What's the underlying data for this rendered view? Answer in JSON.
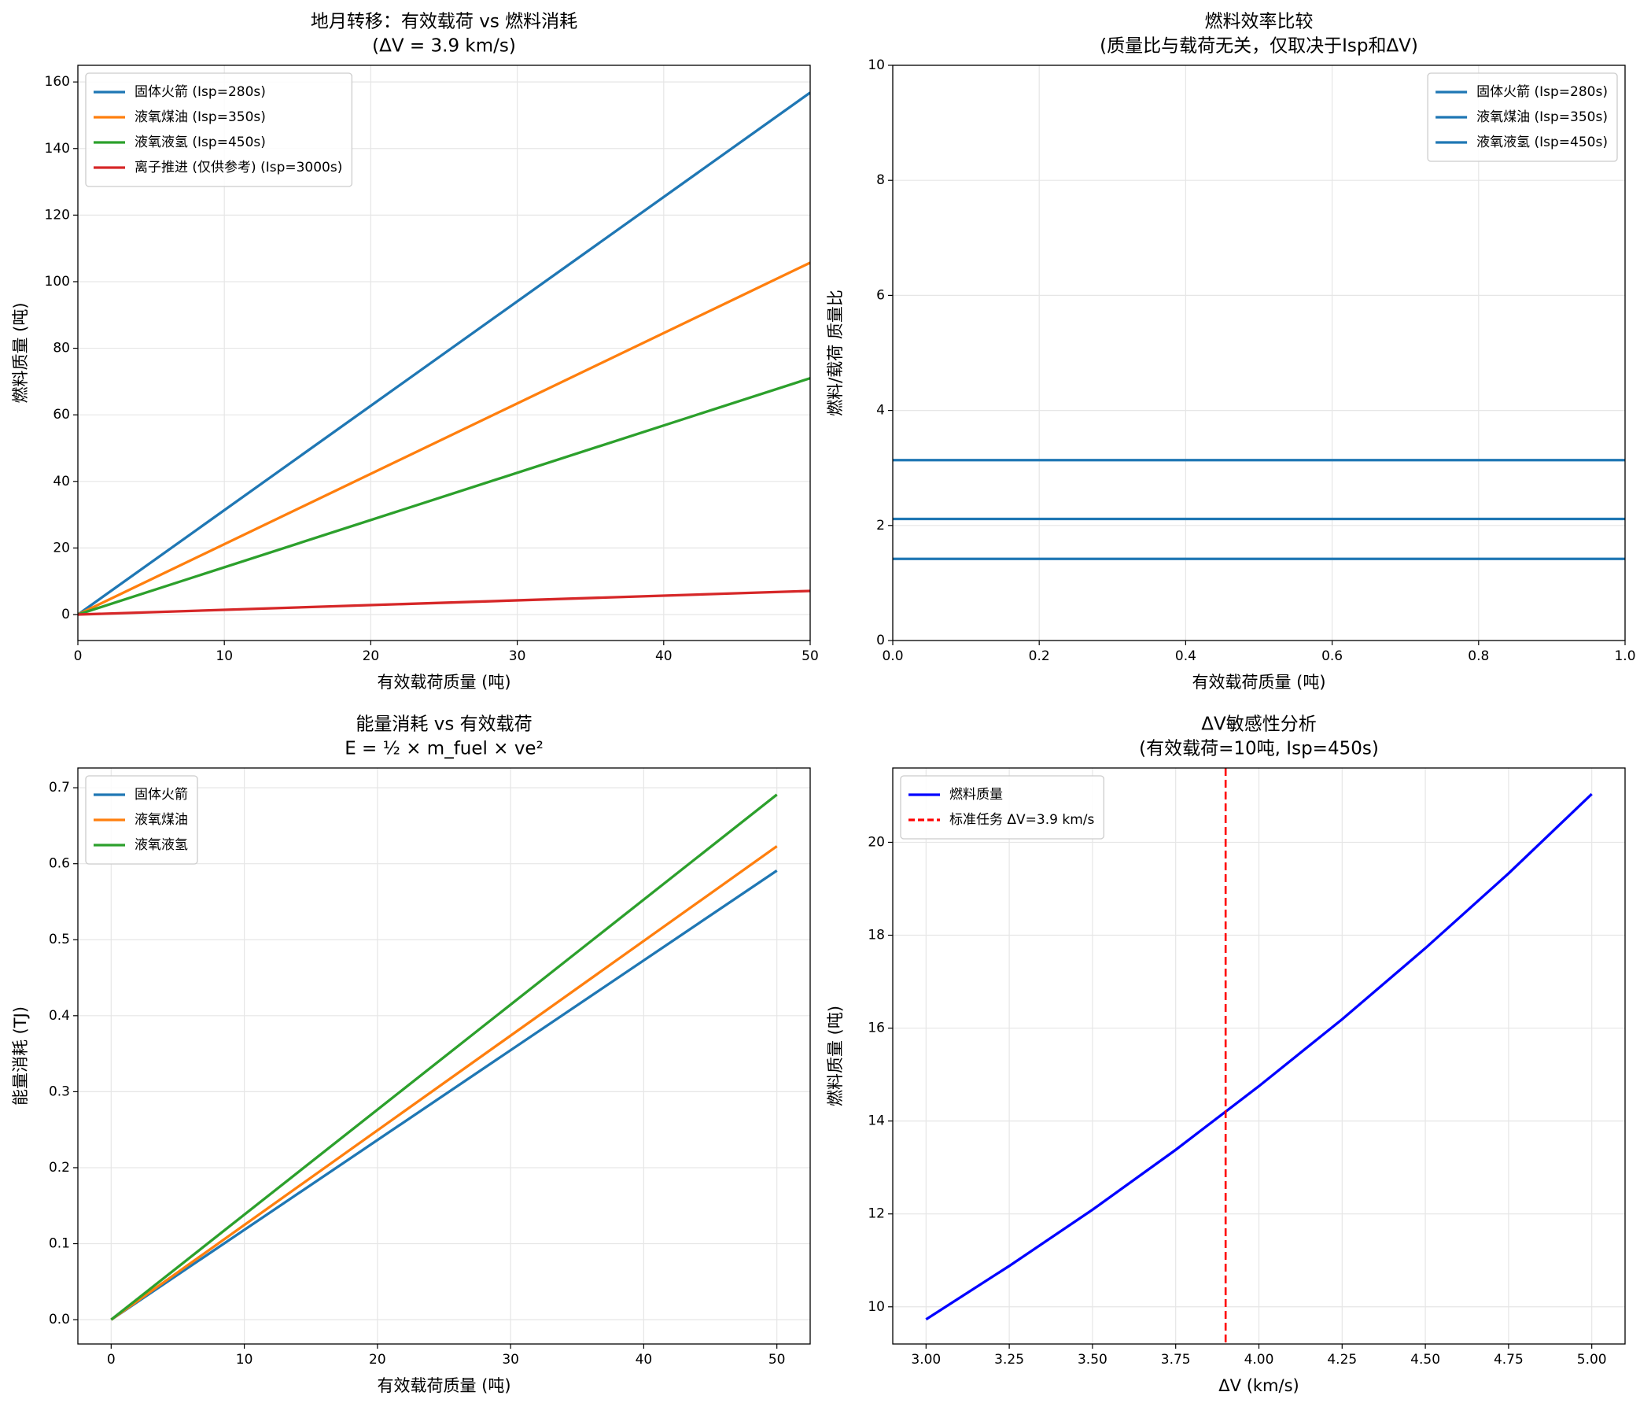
{
  "chart_data": [
    {
      "type": "line",
      "title": [
        "地月转移：有效载荷 vs 燃料消耗",
        "(ΔV = 3.9 km/s)"
      ],
      "xlabel": "有效载荷质量 (吨)",
      "ylabel": "燃料质量 (吨)",
      "x": [
        0,
        50
      ],
      "xlim": [
        0,
        50
      ],
      "ylim": [
        -7.8,
        165
      ],
      "xticks": [
        0,
        10,
        20,
        30,
        40,
        50
      ],
      "yticks": [
        0,
        20,
        40,
        60,
        80,
        100,
        120,
        140,
        160
      ],
      "grid": true,
      "legend": "upper left",
      "series": [
        {
          "name": "固体火箭 (Isp=280s)",
          "color": "#1f77b4",
          "values": [
            0,
            156.8
          ]
        },
        {
          "name": "液氧煤油 (Isp=350s)",
          "color": "#ff7f0e",
          "values": [
            0,
            105.7
          ]
        },
        {
          "name": "液氧液氢 (Isp=450s)",
          "color": "#2ca02c",
          "values": [
            0,
            71.0
          ]
        },
        {
          "name": "离子推进 (仅供参考) (Isp=3000s)",
          "color": "#d62728",
          "values": [
            0,
            7.1
          ]
        }
      ]
    },
    {
      "type": "line",
      "title": [
        "燃料效率比较",
        "(质量比与载荷无关，仅取决于Isp和ΔV)"
      ],
      "xlabel": "有效载荷质量 (吨)",
      "ylabel": "燃料/载荷 质量比",
      "x": [
        0,
        1
      ],
      "xlim": [
        0,
        1
      ],
      "ylim": [
        0,
        10
      ],
      "xticks": [
        {
          "value": 0,
          "label": "0.0"
        },
        0.2,
        0.4,
        0.6,
        0.8,
        {
          "value": 1,
          "label": "1.0"
        }
      ],
      "yticks": [
        0,
        2,
        4,
        6,
        8,
        10
      ],
      "grid": true,
      "legend": "upper right",
      "series": [
        {
          "name": "固体火箭 (Isp=280s)",
          "color": "#1f77b4",
          "values": [
            3.136,
            3.136
          ]
        },
        {
          "name": "液氧煤油 (Isp=350s)",
          "color": "#1f77b4",
          "values": [
            2.114,
            2.114
          ]
        },
        {
          "name": "液氧液氢 (Isp=450s)",
          "color": "#1f77b4",
          "values": [
            1.419,
            1.419
          ]
        }
      ]
    },
    {
      "type": "line",
      "title": [
        "能量消耗 vs 有效载荷",
        "E = ½ × m_fuel × ve²"
      ],
      "xlabel": "有效载荷质量 (吨)",
      "ylabel": "能量消耗 (TJ)",
      "x": [
        0,
        50
      ],
      "xlim": [
        -2.5,
        52.5
      ],
      "ylim": [
        -0.032,
        0.726
      ],
      "xticks": [
        0,
        10,
        20,
        30,
        40,
        50
      ],
      "yticks": [
        {
          "value": 0,
          "label": "0.0"
        },
        0.1,
        0.2,
        0.3,
        0.4,
        0.5,
        0.6,
        0.7
      ],
      "grid": true,
      "legend": "upper left",
      "series": [
        {
          "name": "固体火箭",
          "color": "#1f77b4",
          "values": [
            0,
            0.591
          ]
        },
        {
          "name": "液氧煤油",
          "color": "#ff7f0e",
          "values": [
            0,
            0.623
          ]
        },
        {
          "name": "液氧液氢",
          "color": "#2ca02c",
          "values": [
            0,
            0.691
          ]
        }
      ]
    },
    {
      "type": "line",
      "title": [
        "ΔV敏感性分析",
        "(有效载荷=10吨, Isp=450s)"
      ],
      "xlabel": "ΔV (km/s)",
      "ylabel": "燃料质量 (吨)",
      "x": [
        3.0,
        3.25,
        3.5,
        3.75,
        4.0,
        4.25,
        4.5,
        4.75,
        5.0
      ],
      "xlim": [
        2.9,
        5.1
      ],
      "ylim": [
        9.2,
        21.6
      ],
      "xticks": [
        {
          "value": 3,
          "label": "3.00"
        },
        3.25,
        {
          "value": 3.5,
          "label": "3.50"
        },
        3.75,
        {
          "value": 4,
          "label": "4.00"
        },
        4.25,
        {
          "value": 4.5,
          "label": "4.50"
        },
        4.75,
        {
          "value": 5,
          "label": "5.00"
        }
      ],
      "yticks": [
        10,
        12,
        14,
        16,
        18,
        20
      ],
      "grid": true,
      "legend": "upper left",
      "series": [
        {
          "name": "燃料质量",
          "color": "#0000ff",
          "values": [
            9.73,
            10.88,
            12.09,
            13.38,
            14.75,
            16.19,
            17.72,
            19.33,
            21.04
          ]
        }
      ],
      "vlines": [
        {
          "name": "标准任务 ΔV=3.9 km/s",
          "color": "#ff0000",
          "x": 3.9
        }
      ]
    }
  ]
}
